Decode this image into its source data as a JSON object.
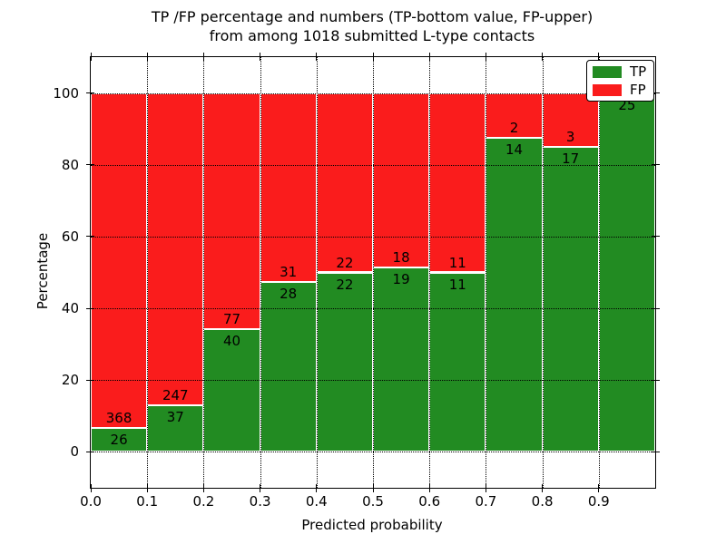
{
  "title": {
    "line1": "TP /FP percentage and numbers (TP-bottom value, FP-upper)",
    "line2": "from among 1018 submitted L-type contacts"
  },
  "axes": {
    "ylabel": "Percentage",
    "xlabel": "Predicted probability",
    "yticks": [
      0,
      20,
      40,
      60,
      80,
      100
    ],
    "xticks": [
      "0.0",
      "0.1",
      "0.2",
      "0.3",
      "0.4",
      "0.5",
      "0.6",
      "0.7",
      "0.8",
      "0.9"
    ]
  },
  "legend": {
    "items": [
      {
        "label": "TP",
        "color": "#228b22"
      },
      {
        "label": "FP",
        "color": "#fa1c1c"
      }
    ]
  },
  "colors": {
    "tp": "#228b22",
    "fp": "#fa1c1c",
    "grid": "#000000"
  },
  "chart_data": {
    "type": "bar",
    "stacked": true,
    "normalized": "each bin stacked to 100%",
    "title": "TP /FP percentage and numbers (TP-bottom value, FP-upper) from among 1018 submitted L-type contacts",
    "xlabel": "Predicted probability",
    "ylabel": "Percentage",
    "categories": [
      "0.0-0.1",
      "0.1-0.2",
      "0.2-0.3",
      "0.3-0.4",
      "0.4-0.5",
      "0.5-0.6",
      "0.6-0.7",
      "0.7-0.8",
      "0.8-0.9",
      "0.9-1.0"
    ],
    "series": [
      {
        "name": "TP",
        "counts": [
          26,
          37,
          40,
          28,
          22,
          19,
          11,
          14,
          17,
          25
        ]
      },
      {
        "name": "FP",
        "counts": [
          368,
          247,
          77,
          31,
          22,
          18,
          11,
          2,
          3,
          0
        ]
      }
    ],
    "total_contacts": 1018,
    "ylim": [
      -10,
      110
    ],
    "xlim": [
      0.0,
      1.0
    ],
    "grid": "dotted black, drawn above bars",
    "legend_position": "upper right"
  }
}
